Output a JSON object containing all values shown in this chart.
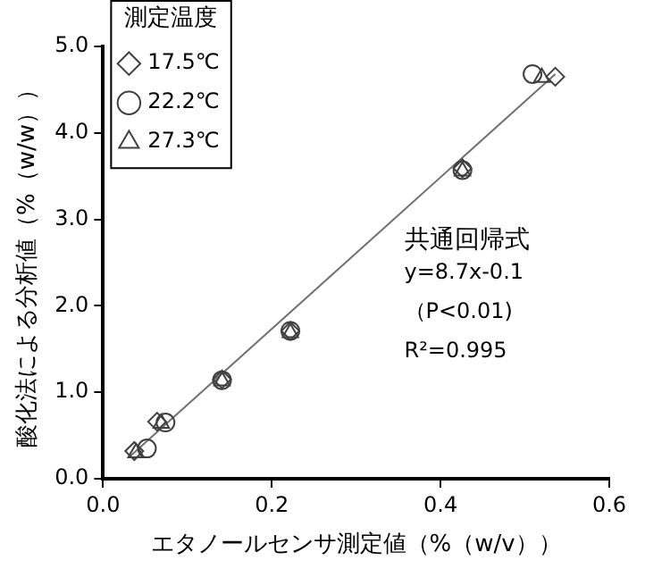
{
  "chart_data": {
    "type": "scatter",
    "xlabel": "エタノールセンサ測定値（%（w/v））",
    "ylabel": "酸化法による分析値（%（w/w））",
    "legend_title": "測定温度",
    "legend": "top left",
    "grid": false,
    "xlim": [
      0,
      0.6
    ],
    "xticks": [
      {
        "value": 0,
        "label": "0.0"
      },
      0.2,
      0.4,
      0.6
    ],
    "ylim": [
      0,
      5
    ],
    "yticks": [
      {
        "value": 0,
        "label": "0.0"
      },
      {
        "value": 1,
        "label": "1.0"
      },
      {
        "value": 2,
        "label": "2.0"
      },
      {
        "value": 3,
        "label": "3.0"
      },
      {
        "value": 4,
        "label": "4.0"
      },
      {
        "value": 5,
        "label": "5.0"
      }
    ],
    "series": [
      {
        "name": "17.5℃",
        "color": "#404040",
        "marker": "diamond",
        "x": [
          0.037,
          0.064,
          0.141,
          0.222,
          0.426,
          0.536
        ],
        "values": [
          0.32,
          0.66,
          1.15,
          1.71,
          3.59,
          4.65
        ]
      },
      {
        "name": "22.2℃",
        "color": "#404040",
        "marker": "circle",
        "x": [
          0.052,
          0.074,
          0.141,
          0.222,
          0.426,
          0.509
        ],
        "values": [
          0.35,
          0.65,
          1.14,
          1.71,
          3.57,
          4.68
        ]
      },
      {
        "name": "27.3℃",
        "color": "#404040",
        "marker": "triangle",
        "x": [
          0.039,
          0.069,
          0.141,
          0.222,
          0.426,
          0.52
        ],
        "values": [
          0.3,
          0.64,
          1.13,
          1.69,
          3.56,
          4.64
        ]
      },
      {
        "type": "line",
        "color": "#707070",
        "marker": "none",
        "x": [
          0.032,
          0.536
        ],
        "values": [
          0.26,
          4.68
        ]
      }
    ],
    "annotations": [
      "共通回帰式",
      "y=8.7x-0.1",
      "（P<0.01)",
      "R²=0.995"
    ]
  }
}
